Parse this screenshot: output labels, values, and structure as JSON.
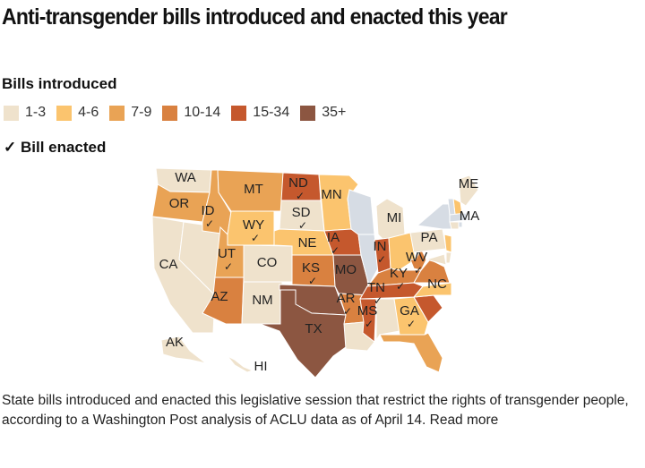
{
  "title": "Anti-transgender bills introduced and enacted this year",
  "legend": {
    "heading": "Bills introduced",
    "bins": [
      {
        "label": "1-3",
        "color": "#efe2cc"
      },
      {
        "label": "4-6",
        "color": "#fbc46e"
      },
      {
        "label": "7-9",
        "color": "#e9a355"
      },
      {
        "label": "10-14",
        "color": "#d98140"
      },
      {
        "label": "15-34",
        "color": "#c5582d"
      },
      {
        "label": "35+",
        "color": "#8c5641"
      }
    ],
    "no_bills": "#d6dce4",
    "enacted_label": "✓ Bill enacted"
  },
  "states": [
    {
      "code": "WA",
      "bin": 0,
      "enacted": false
    },
    {
      "code": "OR",
      "bin": 2,
      "enacted": false
    },
    {
      "code": "CA",
      "bin": 0,
      "enacted": false
    },
    {
      "code": "NV",
      "bin": 0,
      "enacted": false
    },
    {
      "code": "ID",
      "bin": 2,
      "enacted": true
    },
    {
      "code": "MT",
      "bin": 2,
      "enacted": false
    },
    {
      "code": "WY",
      "bin": 1,
      "enacted": true
    },
    {
      "code": "UT",
      "bin": 2,
      "enacted": true
    },
    {
      "code": "CO",
      "bin": 0,
      "enacted": false
    },
    {
      "code": "AZ",
      "bin": 3,
      "enacted": false
    },
    {
      "code": "NM",
      "bin": 0,
      "enacted": false
    },
    {
      "code": "ND",
      "bin": 4,
      "enacted": true
    },
    {
      "code": "SD",
      "bin": 0,
      "enacted": true
    },
    {
      "code": "NE",
      "bin": 1,
      "enacted": false
    },
    {
      "code": "KS",
      "bin": 3,
      "enacted": true
    },
    {
      "code": "OK",
      "bin": 5,
      "enacted": false
    },
    {
      "code": "TX",
      "bin": 5,
      "enacted": false
    },
    {
      "code": "MN",
      "bin": 1,
      "enacted": false
    },
    {
      "code": "IA",
      "bin": 4,
      "enacted": true
    },
    {
      "code": "MO",
      "bin": 5,
      "enacted": false
    },
    {
      "code": "AR",
      "bin": 3,
      "enacted": true
    },
    {
      "code": "LA",
      "bin": 0,
      "enacted": false
    },
    {
      "code": "WI",
      "bin": null,
      "enacted": false
    },
    {
      "code": "IL",
      "bin": null,
      "enacted": false
    },
    {
      "code": "MI",
      "bin": 0,
      "enacted": false
    },
    {
      "code": "IN",
      "bin": 4,
      "enacted": true
    },
    {
      "code": "OH",
      "bin": 1,
      "enacted": false
    },
    {
      "code": "KY",
      "bin": 3,
      "enacted": true
    },
    {
      "code": "TN",
      "bin": 4,
      "enacted": true
    },
    {
      "code": "MS",
      "bin": 4,
      "enacted": true
    },
    {
      "code": "AL",
      "bin": 0,
      "enacted": false
    },
    {
      "code": "GA",
      "bin": 1,
      "enacted": true
    },
    {
      "code": "FL",
      "bin": 2,
      "enacted": false
    },
    {
      "code": "SC",
      "bin": 4,
      "enacted": false
    },
    {
      "code": "NC",
      "bin": 1,
      "enacted": false
    },
    {
      "code": "VA",
      "bin": 3,
      "enacted": false
    },
    {
      "code": "WV",
      "bin": 3,
      "enacted": true
    },
    {
      "code": "PA",
      "bin": 0,
      "enacted": false
    },
    {
      "code": "NY",
      "bin": null,
      "enacted": false
    },
    {
      "code": "NJ",
      "bin": 1,
      "enacted": false
    },
    {
      "code": "MD",
      "bin": 0,
      "enacted": false
    },
    {
      "code": "DE",
      "bin": 0,
      "enacted": false
    },
    {
      "code": "ME",
      "bin": 0,
      "enacted": false
    },
    {
      "code": "NH",
      "bin": 1,
      "enacted": false
    },
    {
      "code": "VT",
      "bin": null,
      "enacted": false
    },
    {
      "code": "MA",
      "bin": null,
      "enacted": false
    },
    {
      "code": "CT",
      "bin": 0,
      "enacted": false
    },
    {
      "code": "RI",
      "bin": null,
      "enacted": false
    },
    {
      "code": "AK",
      "bin": 0,
      "enacted": false
    },
    {
      "code": "HI",
      "bin": 0,
      "enacted": false
    }
  ],
  "labeled_states": [
    "WA",
    "OR",
    "CA",
    "ID",
    "MT",
    "WY",
    "UT",
    "CO",
    "AZ",
    "NM",
    "ND",
    "SD",
    "NE",
    "KS",
    "TX",
    "MN",
    "IA",
    "MO",
    "AR",
    "MI",
    "IN",
    "KY",
    "TN",
    "MS",
    "GA",
    "NC",
    "WV",
    "PA",
    "ME",
    "MA",
    "AK",
    "HI"
  ],
  "caption": "State bills introduced and enacted this legislative session that restrict the rights of transgender people, according to a Washington Post analysis of ACLU data as of April 14.",
  "read_more": "Read more"
}
